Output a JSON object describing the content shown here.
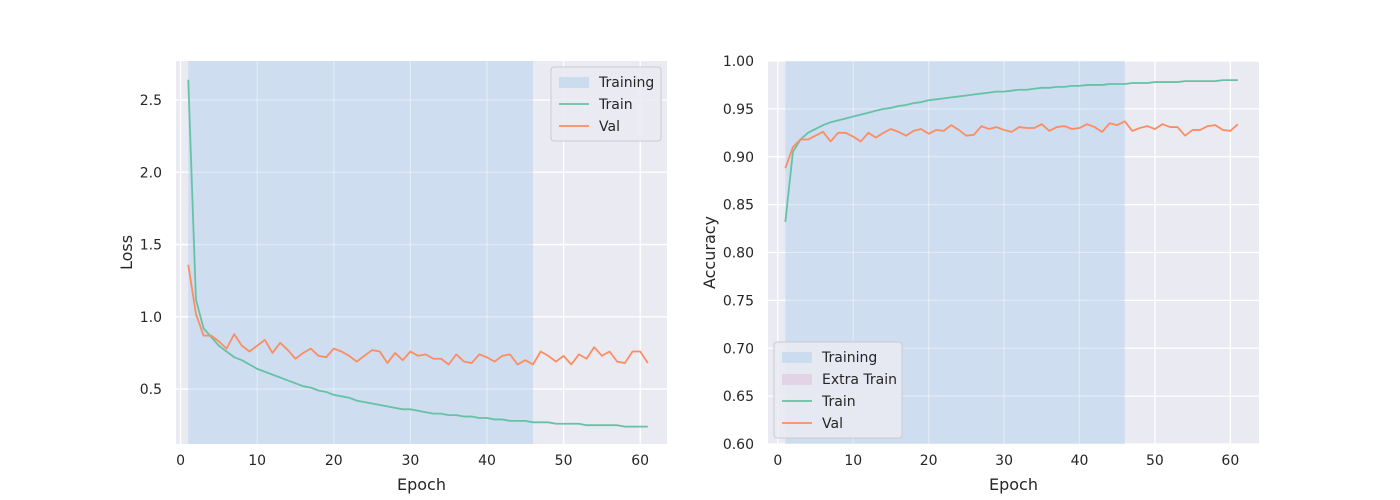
{
  "chart_data": [
    {
      "type": "line",
      "title": "",
      "xlabel": "Epoch",
      "ylabel": "Loss",
      "xlim": [
        -0.6,
        63.5
      ],
      "ylim": [
        0.12,
        2.77
      ],
      "xticks": [
        0,
        10,
        20,
        30,
        40,
        50,
        60
      ],
      "yticks": [
        0.5,
        1.0,
        1.5,
        2.0,
        2.5
      ],
      "ytick_labels": [
        "0.5",
        "1.0",
        "1.5",
        "2.0",
        "2.5"
      ],
      "grid": true,
      "legend_position": "top-right",
      "spans": [
        {
          "name": "Training",
          "x_start": 1,
          "x_end": 46,
          "color": "#cbdcee"
        }
      ],
      "series": [
        {
          "name": "Train",
          "color": "#66c2a5",
          "x": [
            1,
            2,
            3,
            4,
            5,
            6,
            7,
            8,
            9,
            10,
            11,
            12,
            13,
            14,
            15,
            16,
            17,
            18,
            19,
            20,
            21,
            22,
            23,
            24,
            25,
            26,
            27,
            28,
            29,
            30,
            31,
            32,
            33,
            34,
            35,
            36,
            37,
            38,
            39,
            40,
            41,
            42,
            43,
            44,
            45,
            46,
            47,
            48,
            49,
            50,
            51,
            52,
            53,
            54,
            55,
            56,
            57,
            58,
            59,
            60,
            61
          ],
          "values": [
            2.64,
            1.12,
            0.92,
            0.86,
            0.8,
            0.76,
            0.72,
            0.7,
            0.67,
            0.64,
            0.62,
            0.6,
            0.58,
            0.56,
            0.54,
            0.52,
            0.51,
            0.49,
            0.48,
            0.46,
            0.45,
            0.44,
            0.42,
            0.41,
            0.4,
            0.39,
            0.38,
            0.37,
            0.36,
            0.36,
            0.35,
            0.34,
            0.33,
            0.33,
            0.32,
            0.32,
            0.31,
            0.31,
            0.3,
            0.3,
            0.29,
            0.29,
            0.28,
            0.28,
            0.28,
            0.27,
            0.27,
            0.27,
            0.26,
            0.26,
            0.26,
            0.26,
            0.25,
            0.25,
            0.25,
            0.25,
            0.25,
            0.24,
            0.24,
            0.24,
            0.24
          ]
        },
        {
          "name": "Val",
          "color": "#fc8d62",
          "x": [
            1,
            2,
            3,
            4,
            5,
            6,
            7,
            8,
            9,
            10,
            11,
            12,
            13,
            14,
            15,
            16,
            17,
            18,
            19,
            20,
            21,
            22,
            23,
            24,
            25,
            26,
            27,
            28,
            29,
            30,
            31,
            32,
            33,
            34,
            35,
            36,
            37,
            38,
            39,
            40,
            41,
            42,
            43,
            44,
            45,
            46,
            47,
            48,
            49,
            50,
            51,
            52,
            53,
            54,
            55,
            56,
            57,
            58,
            59,
            60,
            61
          ],
          "values": [
            1.36,
            1.02,
            0.87,
            0.87,
            0.83,
            0.78,
            0.88,
            0.8,
            0.76,
            0.8,
            0.84,
            0.75,
            0.82,
            0.77,
            0.71,
            0.75,
            0.78,
            0.73,
            0.72,
            0.78,
            0.76,
            0.73,
            0.69,
            0.73,
            0.77,
            0.76,
            0.68,
            0.75,
            0.7,
            0.76,
            0.73,
            0.74,
            0.71,
            0.71,
            0.67,
            0.74,
            0.69,
            0.68,
            0.74,
            0.72,
            0.69,
            0.73,
            0.74,
            0.67,
            0.7,
            0.67,
            0.76,
            0.73,
            0.69,
            0.73,
            0.67,
            0.74,
            0.71,
            0.79,
            0.73,
            0.76,
            0.69,
            0.68,
            0.76,
            0.76,
            0.68
          ]
        }
      ]
    },
    {
      "type": "line",
      "title": "",
      "xlabel": "Epoch",
      "ylabel": "Accuracy",
      "xlim": [
        -1.3,
        63.8
      ],
      "ylim": [
        0.6,
        1.0
      ],
      "xticks": [
        0,
        10,
        20,
        30,
        40,
        50,
        60
      ],
      "yticks": [
        0.6,
        0.65,
        0.7,
        0.75,
        0.8,
        0.85,
        0.9,
        0.95,
        1.0
      ],
      "ytick_labels": [
        "0.60",
        "0.65",
        "0.70",
        "0.75",
        "0.80",
        "0.85",
        "0.90",
        "0.95",
        "1.00"
      ],
      "grid": true,
      "legend_position": "lower-left",
      "spans": [
        {
          "name": "Training",
          "x_start": 1,
          "x_end": 46,
          "color": "#cbdcee"
        }
      ],
      "legend_patches": [
        {
          "name": "Extra Train",
          "color": "#e3d3e6"
        }
      ],
      "series": [
        {
          "name": "Train",
          "color": "#66c2a5",
          "x": [
            1,
            2,
            3,
            4,
            5,
            6,
            7,
            8,
            9,
            10,
            11,
            12,
            13,
            14,
            15,
            16,
            17,
            18,
            19,
            20,
            21,
            22,
            23,
            24,
            25,
            26,
            27,
            28,
            29,
            30,
            31,
            32,
            33,
            34,
            35,
            36,
            37,
            38,
            39,
            40,
            41,
            42,
            43,
            44,
            45,
            46,
            47,
            48,
            49,
            50,
            51,
            52,
            53,
            54,
            55,
            56,
            57,
            58,
            59,
            60,
            61
          ],
          "values": [
            0.832,
            0.905,
            0.918,
            0.925,
            0.929,
            0.933,
            0.936,
            0.938,
            0.94,
            0.942,
            0.944,
            0.946,
            0.948,
            0.95,
            0.951,
            0.953,
            0.954,
            0.956,
            0.957,
            0.959,
            0.96,
            0.961,
            0.962,
            0.963,
            0.964,
            0.965,
            0.966,
            0.967,
            0.968,
            0.968,
            0.969,
            0.97,
            0.97,
            0.971,
            0.972,
            0.972,
            0.973,
            0.973,
            0.974,
            0.974,
            0.975,
            0.975,
            0.975,
            0.976,
            0.976,
            0.976,
            0.977,
            0.977,
            0.977,
            0.978,
            0.978,
            0.978,
            0.978,
            0.979,
            0.979,
            0.979,
            0.979,
            0.979,
            0.98,
            0.98,
            0.98
          ]
        },
        {
          "name": "Val",
          "color": "#fc8d62",
          "x": [
            1,
            2,
            3,
            4,
            5,
            6,
            7,
            8,
            9,
            10,
            11,
            12,
            13,
            14,
            15,
            16,
            17,
            18,
            19,
            20,
            21,
            22,
            23,
            24,
            25,
            26,
            27,
            28,
            29,
            30,
            31,
            32,
            33,
            34,
            35,
            36,
            37,
            38,
            39,
            40,
            41,
            42,
            43,
            44,
            45,
            46,
            47,
            48,
            49,
            50,
            51,
            52,
            53,
            54,
            55,
            56,
            57,
            58,
            59,
            60,
            61
          ],
          "values": [
            0.888,
            0.91,
            0.918,
            0.918,
            0.922,
            0.926,
            0.916,
            0.925,
            0.925,
            0.921,
            0.916,
            0.925,
            0.92,
            0.925,
            0.929,
            0.926,
            0.922,
            0.927,
            0.929,
            0.924,
            0.928,
            0.927,
            0.933,
            0.928,
            0.922,
            0.923,
            0.932,
            0.929,
            0.931,
            0.928,
            0.926,
            0.931,
            0.93,
            0.93,
            0.934,
            0.927,
            0.931,
            0.932,
            0.929,
            0.93,
            0.934,
            0.931,
            0.926,
            0.935,
            0.933,
            0.937,
            0.927,
            0.93,
            0.932,
            0.929,
            0.934,
            0.931,
            0.931,
            0.922,
            0.928,
            0.928,
            0.932,
            0.933,
            0.928,
            0.927,
            0.934
          ]
        }
      ]
    }
  ]
}
